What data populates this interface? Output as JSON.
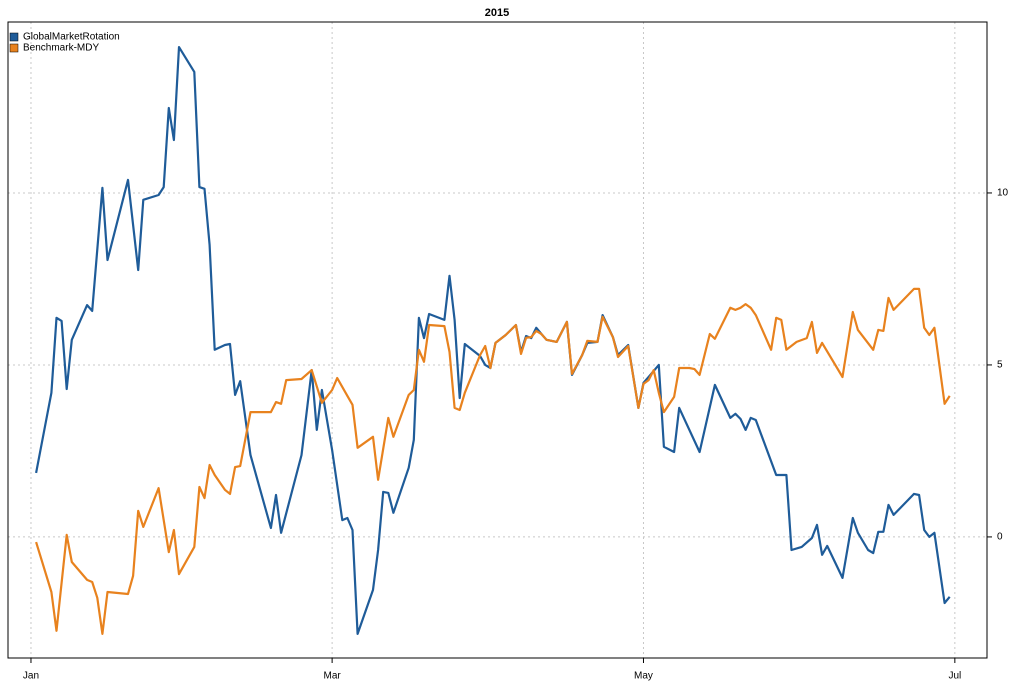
{
  "chart_data": {
    "type": "line",
    "title": "2015",
    "xlim": [
      -4.5,
      187.3
    ],
    "xticks": [
      {
        "value": 0,
        "label": "Jan"
      },
      {
        "value": 59,
        "label": "Mar"
      },
      {
        "value": 120,
        "label": "May"
      },
      {
        "value": 181,
        "label": "Jul"
      }
    ],
    "ylim": [
      -3.52,
      14.97
    ],
    "yticks": [
      0,
      5,
      10
    ],
    "grid": true,
    "legend": "top-left",
    "series": [
      {
        "name": "GlobalMarketRotation",
        "color": "#1f5c99",
        "x": [
          1,
          4,
          5,
          6,
          7,
          8,
          11,
          12,
          14,
          15,
          19,
          21,
          22,
          25,
          26,
          27,
          28,
          29,
          32,
          33,
          34,
          35,
          36,
          38,
          39,
          40,
          41,
          43,
          47,
          48,
          49,
          53,
          55,
          56,
          57,
          59,
          61,
          62,
          63,
          64,
          67,
          68,
          69,
          70,
          71,
          74,
          75,
          76,
          77,
          78,
          81,
          82,
          83,
          84,
          85,
          88,
          89,
          90,
          91,
          93,
          95,
          96,
          97,
          98,
          99,
          100,
          101,
          103,
          105,
          106,
          108,
          109,
          111,
          112,
          114,
          115,
          117,
          119,
          120,
          121,
          123,
          124,
          126,
          127,
          131,
          134,
          137,
          138,
          139,
          140,
          141,
          142,
          146,
          148,
          149,
          151,
          153,
          154,
          155,
          156,
          159,
          161,
          162,
          164,
          165,
          166,
          167,
          168,
          169,
          173,
          174,
          175,
          176,
          177,
          179,
          180
        ],
        "values": [
          1.86,
          4.19,
          6.37,
          6.28,
          4.3,
          5.73,
          6.74,
          6.57,
          10.15,
          8.05,
          10.38,
          7.76,
          9.8,
          9.94,
          10.17,
          12.47,
          11.54,
          14.24,
          13.52,
          10.17,
          10.12,
          8.49,
          5.44,
          5.58,
          5.61,
          4.13,
          4.53,
          2.38,
          0.26,
          1.22,
          0.12,
          2.38,
          4.85,
          3.11,
          4.27,
          2.53,
          0.49,
          0.55,
          0.2,
          -2.82,
          -1.54,
          -0.38,
          1.31,
          1.28,
          0.7,
          2.01,
          2.82,
          6.37,
          5.78,
          6.48,
          6.31,
          7.59,
          6.31,
          4.04,
          5.61,
          5.26,
          5.0,
          4.91,
          5.64,
          5.87,
          6.16,
          5.38,
          5.84,
          5.78,
          6.08,
          5.9,
          5.73,
          5.67,
          6.25,
          4.71,
          5.29,
          5.64,
          5.67,
          6.45,
          5.81,
          5.29,
          5.58,
          3.75,
          4.48,
          4.65,
          5.0,
          2.62,
          2.47,
          3.75,
          2.47,
          4.42,
          3.46,
          3.58,
          3.43,
          3.11,
          3.46,
          3.4,
          1.8,
          1.8,
          -0.38,
          -0.29,
          -0.03,
          0.35,
          -0.52,
          -0.26,
          -1.19,
          0.55,
          0.12,
          -0.38,
          -0.47,
          0.15,
          0.15,
          0.93,
          0.64,
          1.25,
          1.22,
          0.2,
          0.0,
          0.12,
          -1.92,
          -1.74
        ]
      },
      {
        "name": "Benchmark-MDY",
        "color": "#e8821e",
        "x": [
          1,
          4,
          5,
          7,
          8,
          11,
          12,
          13,
          14,
          15,
          19,
          20,
          21,
          22,
          25,
          27,
          28,
          29,
          32,
          33,
          34,
          35,
          36,
          38,
          39,
          40,
          41,
          43,
          47,
          48,
          49,
          50,
          53,
          55,
          57,
          59,
          60,
          62,
          63,
          64,
          67,
          68,
          70,
          71,
          74,
          75,
          76,
          77,
          78,
          81,
          82,
          83,
          84,
          85,
          88,
          89,
          90,
          91,
          93,
          95,
          96,
          97,
          98,
          99,
          100,
          101,
          103,
          105,
          106,
          108,
          109,
          111,
          112,
          114,
          115,
          117,
          119,
          120,
          121,
          122,
          123,
          124,
          126,
          127,
          129,
          130,
          131,
          133,
          134,
          137,
          138,
          139,
          140,
          141,
          142,
          145,
          146,
          147,
          148,
          150,
          152,
          153,
          154,
          155,
          159,
          161,
          162,
          165,
          166,
          167,
          168,
          169,
          173,
          174,
          175,
          176,
          177,
          179,
          180
        ],
        "values": [
          -0.15,
          -1.6,
          -2.73,
          0.06,
          -0.73,
          -1.25,
          -1.31,
          -1.77,
          -2.82,
          -1.6,
          -1.66,
          -1.13,
          0.76,
          0.29,
          1.42,
          -0.44,
          0.2,
          -1.08,
          -0.29,
          1.45,
          1.13,
          2.09,
          1.8,
          1.37,
          1.25,
          2.03,
          2.06,
          3.63,
          3.63,
          3.92,
          3.87,
          4.56,
          4.59,
          4.85,
          3.9,
          4.27,
          4.62,
          4.1,
          3.84,
          2.59,
          2.91,
          1.66,
          3.46,
          2.91,
          4.13,
          4.27,
          5.44,
          5.09,
          6.16,
          6.13,
          5.38,
          3.75,
          3.69,
          4.19,
          5.29,
          5.55,
          4.91,
          5.64,
          5.87,
          6.16,
          5.32,
          5.79,
          5.81,
          5.99,
          5.9,
          5.73,
          5.67,
          6.25,
          4.74,
          5.29,
          5.7,
          5.67,
          6.4,
          5.81,
          5.23,
          5.55,
          3.75,
          4.45,
          4.56,
          4.85,
          4.19,
          3.63,
          4.07,
          4.91,
          4.91,
          4.88,
          4.71,
          5.9,
          5.76,
          6.66,
          6.6,
          6.66,
          6.77,
          6.66,
          6.45,
          5.44,
          6.37,
          6.31,
          5.44,
          5.67,
          5.78,
          6.25,
          5.35,
          5.64,
          4.65,
          6.54,
          6.02,
          5.44,
          6.02,
          5.99,
          6.95,
          6.6,
          7.21,
          7.21,
          6.08,
          5.87,
          6.08,
          3.87,
          4.1
        ]
      }
    ]
  }
}
